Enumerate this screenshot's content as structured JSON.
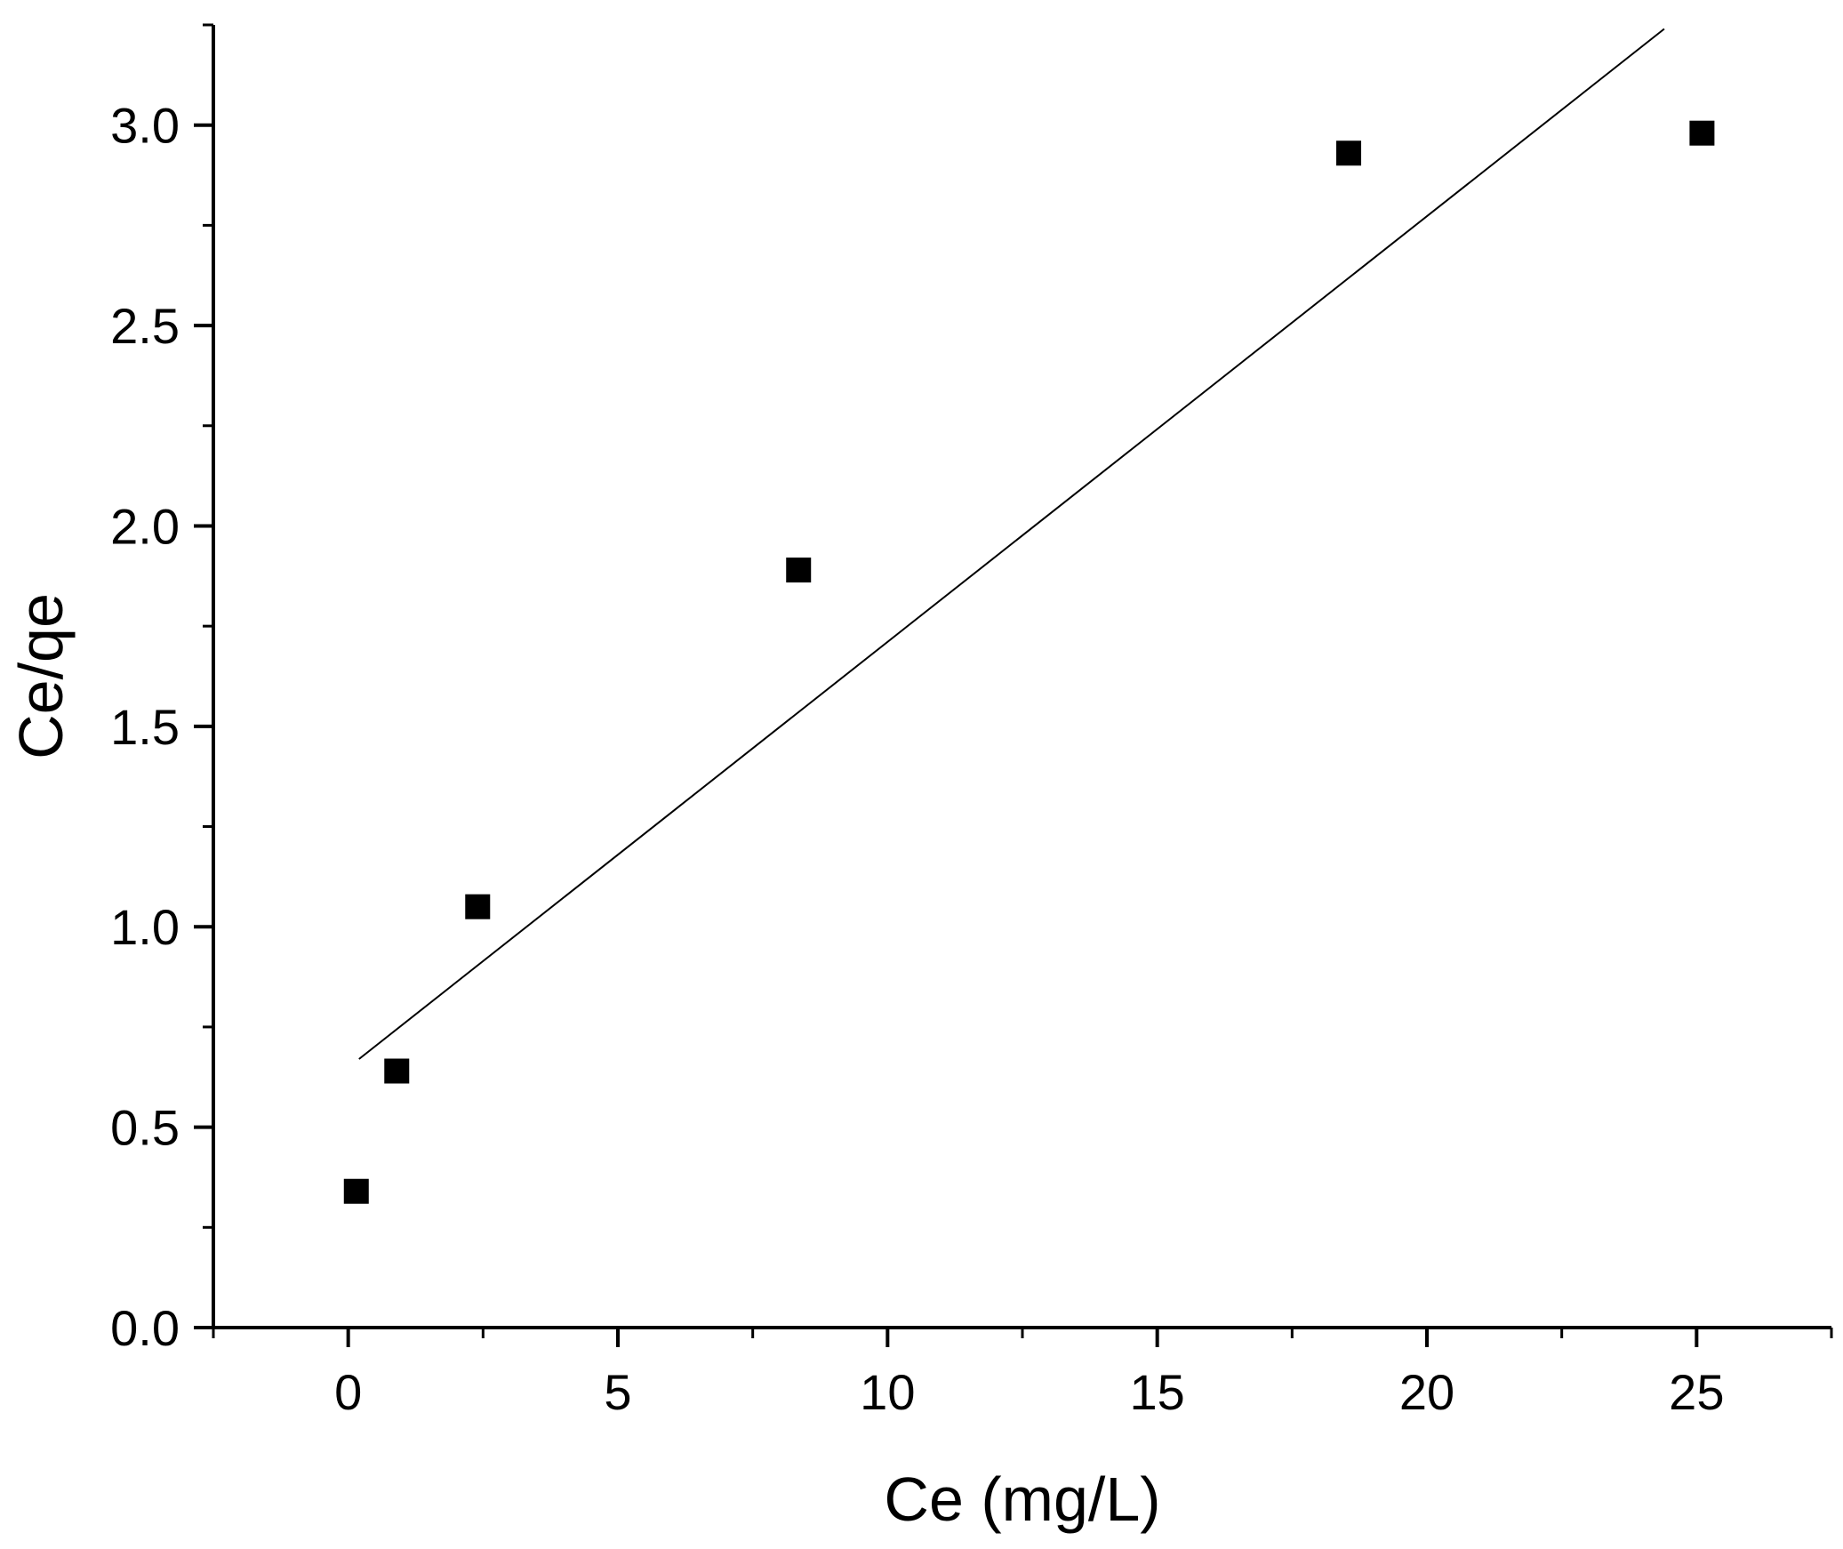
{
  "chart_data": {
    "type": "scatter",
    "title": "",
    "xlabel": "Ce (mg/L)",
    "ylabel": "Ce/qe",
    "xlim": [
      -2.5,
      27.5
    ],
    "ylim": [
      0,
      3.25
    ],
    "x_ticks": [
      0,
      5,
      10,
      15,
      20,
      25
    ],
    "x_tick_labels": [
      "0",
      "5",
      "10",
      "15",
      "20",
      "25"
    ],
    "y_ticks": [
      0.0,
      0.5,
      1.0,
      1.5,
      2.0,
      2.5,
      3.0
    ],
    "y_tick_labels": [
      "0.0",
      "0.5",
      "1.0",
      "1.5",
      "2.0",
      "2.5",
      "3.0"
    ],
    "grid": false,
    "series": [
      {
        "marker": "square",
        "color": "#000000",
        "x": [
          0.15,
          0.9,
          2.4,
          8.35,
          18.55,
          25.1
        ],
        "y": [
          0.34,
          0.64,
          1.05,
          1.89,
          2.93,
          2.98
        ]
      }
    ],
    "fit_line": {
      "color": "#000000",
      "x": [
        0.2,
        24.4
      ],
      "y": [
        0.67,
        3.24
      ]
    }
  }
}
